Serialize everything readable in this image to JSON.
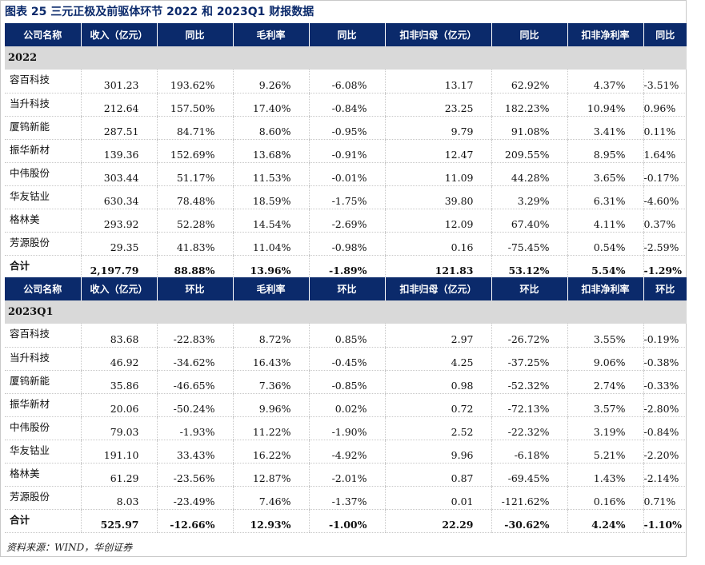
{
  "title": "图表 25  三元正极及前驱体环节 2022 和 2023Q1 财报数据",
  "table1": {
    "headers": [
      "公司名称",
      "收入（亿元）",
      "同比",
      "毛利率",
      "同比",
      "扣非归母（亿元）",
      "同比",
      "扣非净利率",
      "同比"
    ],
    "section": "2022",
    "rows": [
      [
        "容百科技",
        "301.23",
        "193.62%",
        "9.26%",
        "-6.08%",
        "13.17",
        "62.92%",
        "4.37%",
        "-3.51%"
      ],
      [
        "当升科技",
        "212.64",
        "157.50%",
        "17.40%",
        "-0.84%",
        "23.25",
        "182.23%",
        "10.94%",
        "0.96%"
      ],
      [
        "厦钨新能",
        "287.51",
        "84.71%",
        "8.60%",
        "-0.95%",
        "9.79",
        "91.08%",
        "3.41%",
        "0.11%"
      ],
      [
        "振华新材",
        "139.36",
        "152.69%",
        "13.68%",
        "-0.91%",
        "12.47",
        "209.55%",
        "8.95%",
        "1.64%"
      ],
      [
        "中伟股份",
        "303.44",
        "51.17%",
        "11.53%",
        "-0.01%",
        "11.09",
        "44.28%",
        "3.65%",
        "-0.17%"
      ],
      [
        "华友钴业",
        "630.34",
        "78.48%",
        "18.59%",
        "-1.75%",
        "39.80",
        "3.29%",
        "6.31%",
        "-4.60%"
      ],
      [
        "格林美",
        "293.92",
        "52.28%",
        "14.54%",
        "-2.69%",
        "12.09",
        "67.40%",
        "4.11%",
        "0.37%"
      ],
      [
        "芳源股份",
        "29.35",
        "41.83%",
        "11.04%",
        "-0.98%",
        "0.16",
        "-75.45%",
        "0.54%",
        "-2.59%"
      ]
    ],
    "total": [
      "合计",
      "2,197.79",
      "88.88%",
      "13.96%",
      "-1.89%",
      "121.83",
      "53.12%",
      "5.54%",
      "-1.29%"
    ]
  },
  "table2": {
    "headers": [
      "公司名称",
      "收入（亿元）",
      "环比",
      "毛利率",
      "环比",
      "扣非归母（亿元）",
      "环比",
      "扣非净利率",
      "环比"
    ],
    "section": "2023Q1",
    "rows": [
      [
        "容百科技",
        "83.68",
        "-22.83%",
        "8.72%",
        "0.85%",
        "2.97",
        "-26.72%",
        "3.55%",
        "-0.19%"
      ],
      [
        "当升科技",
        "46.92",
        "-34.62%",
        "16.43%",
        "-0.45%",
        "4.25",
        "-37.25%",
        "9.06%",
        "-0.38%"
      ],
      [
        "厦钨新能",
        "35.86",
        "-46.65%",
        "7.36%",
        "-0.85%",
        "0.98",
        "-52.32%",
        "2.74%",
        "-0.33%"
      ],
      [
        "振华新材",
        "20.06",
        "-50.24%",
        "9.96%",
        "0.02%",
        "0.72",
        "-72.13%",
        "3.57%",
        "-2.80%"
      ],
      [
        "中伟股份",
        "79.03",
        "-1.93%",
        "11.22%",
        "-1.90%",
        "2.52",
        "-22.32%",
        "3.19%",
        "-0.84%"
      ],
      [
        "华友钴业",
        "191.10",
        "33.43%",
        "16.22%",
        "-4.92%",
        "9.96",
        "-6.18%",
        "5.21%",
        "-2.20%"
      ],
      [
        "格林美",
        "61.29",
        "-23.56%",
        "12.87%",
        "-2.01%",
        "0.87",
        "-69.45%",
        "1.43%",
        "-2.14%"
      ],
      [
        "芳源股份",
        "8.03",
        "-23.49%",
        "7.46%",
        "-1.37%",
        "0.01",
        "-121.62%",
        "0.16%",
        "0.71%"
      ]
    ],
    "total": [
      "合计",
      "525.97",
      "-12.66%",
      "12.93%",
      "-1.00%",
      "22.29",
      "-30.62%",
      "4.24%",
      "-1.10%"
    ]
  },
  "source": "资料来源：WIND，华创证券"
}
